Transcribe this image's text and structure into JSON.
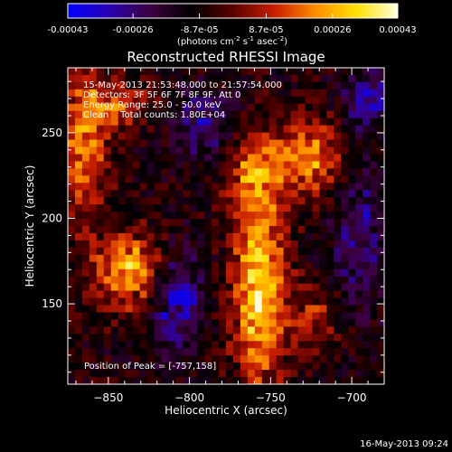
{
  "colorbar": {
    "tick_labels": [
      "-0.00043",
      "-0.00026",
      "-8.7e-05",
      "8.7e-05",
      "0.00026",
      "0.00043"
    ],
    "tick_values": [
      -0.00043,
      -0.00026,
      -8.7e-05,
      8.7e-05,
      0.00026,
      0.00043
    ],
    "range": [
      -0.00043,
      0.00043
    ],
    "units_prefix": "(photons cm",
    "units_exp1": "-2",
    "units_mid": " s",
    "units_exp2": "-1",
    "units_mid2": " asec",
    "units_exp3": "-2",
    "units_suffix": ")",
    "colors": [
      "#0000ff",
      "#2a00b3",
      "#3d003f",
      "#000000",
      "#5a0000",
      "#c81e00",
      "#ff8c00",
      "#ffe000",
      "#ffffe0"
    ]
  },
  "chart_data": {
    "type": "heatmap",
    "title": "Reconstructed RHESSI Image",
    "xlabel": "Heliocentric X (arcsec)",
    "ylabel": "Heliocentric Y (arcsec)",
    "xlim": [
      -875,
      -680
    ],
    "ylim": [
      103,
      288
    ],
    "x_ticks": [
      -850,
      -800,
      -750,
      -700
    ],
    "y_ticks": [
      150,
      200,
      250
    ],
    "x_tick_labels": [
      "−850",
      "−800",
      "−750",
      "−700"
    ],
    "y_tick_labels": [
      "150",
      "200",
      "250"
    ],
    "value_range": [
      -0.00043,
      0.00043
    ],
    "grid": false,
    "hot_regions_description_values": [
      {
        "cx": -757,
        "cy": 158,
        "rx": 16,
        "ry": 55,
        "peak": 0.00043
      },
      {
        "cx": -838,
        "cy": 170,
        "rx": 22,
        "ry": 22,
        "peak": 0.00036
      },
      {
        "cx": -865,
        "cy": 242,
        "rx": 14,
        "ry": 40,
        "peak": 0.0003
      },
      {
        "cx": -760,
        "cy": 228,
        "rx": 18,
        "ry": 22,
        "peak": 0.00026
      },
      {
        "cx": -725,
        "cy": 235,
        "rx": 20,
        "ry": 22,
        "peak": 0.0003
      },
      {
        "cx": -845,
        "cy": 265,
        "rx": 20,
        "ry": 15,
        "peak": 0.00022
      },
      {
        "cx": -722,
        "cy": 140,
        "rx": 14,
        "ry": 20,
        "peak": 0.00018
      }
    ],
    "cold_regions_description_values": [
      {
        "cx": -808,
        "cy": 150,
        "rx": 16,
        "ry": 30,
        "trough": -0.00026
      },
      {
        "cx": -695,
        "cy": 190,
        "rx": 15,
        "ry": 40,
        "trough": -0.0002
      },
      {
        "cx": -790,
        "cy": 255,
        "rx": 20,
        "ry": 20,
        "trough": -0.00018
      },
      {
        "cx": -690,
        "cy": 270,
        "rx": 15,
        "ry": 18,
        "trough": -0.00022
      }
    ],
    "annotations": {
      "time_range": "15-May-2013 21:53:48.000 to 21:57:54.000",
      "detectors": "Detectors: 3F 5F 6F 7F 8F 9F, Att 0",
      "energy_range": "Energy Range: 25.0 - 50.0 keV",
      "method_counts": "Clean    Total counts: 1.80E+04",
      "peak_position": "Position of Peak = [-757,158]"
    }
  },
  "footer": {
    "timestamp": "16-May-2013 09:24"
  }
}
